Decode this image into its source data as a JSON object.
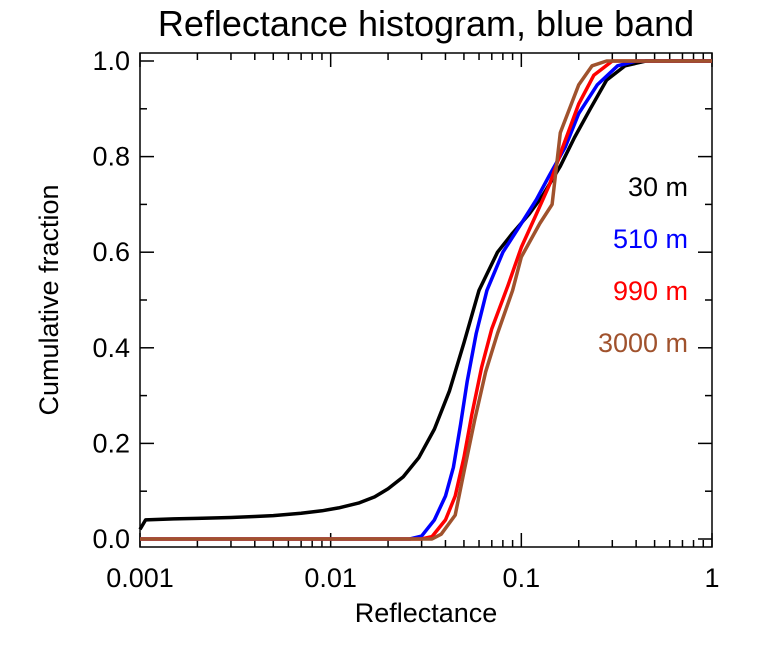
{
  "chart_data": {
    "type": "line",
    "title": "Reflectance histogram, blue band",
    "xlabel": "Reflectance",
    "ylabel": "Cumulative fraction",
    "xscale": "log",
    "xlim": [
      0.001,
      1
    ],
    "ylim": [
      0.0,
      1.0
    ],
    "x_ticks": [
      {
        "value": 0.001,
        "label": "0.001"
      },
      {
        "value": 0.01,
        "label": "0.01"
      },
      {
        "value": 0.1,
        "label": "0.1"
      },
      {
        "value": 1,
        "label": "1"
      }
    ],
    "y_ticks": [
      {
        "value": 0.0,
        "label": "0.0"
      },
      {
        "value": 0.2,
        "label": "0.2"
      },
      {
        "value": 0.4,
        "label": "0.4"
      },
      {
        "value": 0.6,
        "label": "0.6"
      },
      {
        "value": 0.8,
        "label": "0.8"
      },
      {
        "value": 1.0,
        "label": "1.0"
      }
    ],
    "grid": false,
    "legend_position": "right",
    "series": [
      {
        "name": "30 m",
        "color": "#000000",
        "points": [
          [
            0.001,
            0.02
          ],
          [
            0.00107,
            0.04
          ],
          [
            0.0015,
            0.042
          ],
          [
            0.002,
            0.043
          ],
          [
            0.003,
            0.045
          ],
          [
            0.004,
            0.047
          ],
          [
            0.005,
            0.049
          ],
          [
            0.007,
            0.054
          ],
          [
            0.009,
            0.059
          ],
          [
            0.011,
            0.065
          ],
          [
            0.014,
            0.075
          ],
          [
            0.017,
            0.088
          ],
          [
            0.02,
            0.105
          ],
          [
            0.024,
            0.13
          ],
          [
            0.029,
            0.17
          ],
          [
            0.035,
            0.23
          ],
          [
            0.042,
            0.31
          ],
          [
            0.05,
            0.41
          ],
          [
            0.06,
            0.52
          ],
          [
            0.075,
            0.6
          ],
          [
            0.09,
            0.64
          ],
          [
            0.11,
            0.68
          ],
          [
            0.13,
            0.72
          ],
          [
            0.16,
            0.78
          ],
          [
            0.19,
            0.84
          ],
          [
            0.23,
            0.9
          ],
          [
            0.28,
            0.96
          ],
          [
            0.35,
            0.99
          ],
          [
            0.45,
            1.0
          ],
          [
            1.0,
            1.0
          ]
        ]
      },
      {
        "name": "510 m",
        "color": "#0000ff",
        "points": [
          [
            0.001,
            0.0
          ],
          [
            0.026,
            0.0
          ],
          [
            0.03,
            0.006
          ],
          [
            0.035,
            0.04
          ],
          [
            0.04,
            0.09
          ],
          [
            0.044,
            0.15
          ],
          [
            0.048,
            0.24
          ],
          [
            0.052,
            0.33
          ],
          [
            0.058,
            0.43
          ],
          [
            0.066,
            0.52
          ],
          [
            0.08,
            0.6
          ],
          [
            0.1,
            0.66
          ],
          [
            0.12,
            0.71
          ],
          [
            0.14,
            0.76
          ],
          [
            0.17,
            0.82
          ],
          [
            0.2,
            0.89
          ],
          [
            0.25,
            0.95
          ],
          [
            0.32,
            0.99
          ],
          [
            0.4,
            1.0
          ],
          [
            1.0,
            1.0
          ]
        ]
      },
      {
        "name": "990 m",
        "color": "#ff0000",
        "points": [
          [
            0.001,
            0.0
          ],
          [
            0.03,
            0.0
          ],
          [
            0.034,
            0.005
          ],
          [
            0.04,
            0.04
          ],
          [
            0.045,
            0.09
          ],
          [
            0.05,
            0.17
          ],
          [
            0.055,
            0.26
          ],
          [
            0.062,
            0.36
          ],
          [
            0.07,
            0.44
          ],
          [
            0.085,
            0.53
          ],
          [
            0.1,
            0.61
          ],
          [
            0.12,
            0.68
          ],
          [
            0.14,
            0.74
          ],
          [
            0.165,
            0.82
          ],
          [
            0.2,
            0.91
          ],
          [
            0.24,
            0.97
          ],
          [
            0.3,
            1.0
          ],
          [
            1.0,
            1.0
          ]
        ]
      },
      {
        "name": "3000 m",
        "color": "#a0522d",
        "points": [
          [
            0.001,
            0.0
          ],
          [
            0.034,
            0.0
          ],
          [
            0.038,
            0.01
          ],
          [
            0.045,
            0.05
          ],
          [
            0.05,
            0.14
          ],
          [
            0.057,
            0.25
          ],
          [
            0.065,
            0.35
          ],
          [
            0.075,
            0.43
          ],
          [
            0.09,
            0.52
          ],
          [
            0.1,
            0.59
          ],
          [
            0.125,
            0.66
          ],
          [
            0.145,
            0.7
          ],
          [
            0.16,
            0.85
          ],
          [
            0.2,
            0.95
          ],
          [
            0.235,
            0.99
          ],
          [
            0.28,
            1.0
          ],
          [
            1.0,
            1.0
          ]
        ]
      }
    ]
  }
}
